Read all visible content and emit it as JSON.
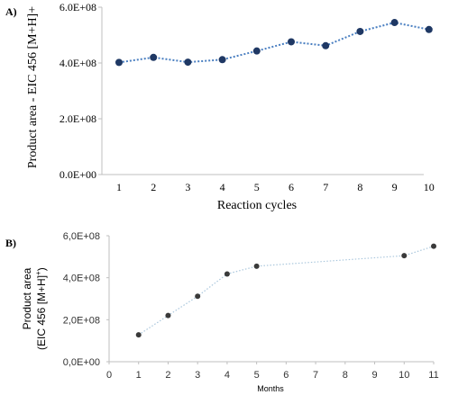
{
  "panels": [
    {
      "label": "A)"
    },
    {
      "label": "B)"
    }
  ],
  "chart_data": [
    {
      "type": "line",
      "title": "",
      "xlabel": "Reaction cycles",
      "ylabel": "Product area - EIC 456 [M+H]+",
      "x": [
        1,
        2,
        3,
        4,
        5,
        6,
        7,
        8,
        9,
        10
      ],
      "x_ticks": [
        "1",
        "2",
        "3",
        "4",
        "5",
        "6",
        "7",
        "8",
        "9",
        "10"
      ],
      "ylim": [
        0,
        600000000
      ],
      "y_ticks": [
        0,
        200000000,
        400000000,
        600000000
      ],
      "y_tick_labels": [
        "0.0E+00",
        "2.0E+08",
        "4.0E+08",
        "6.0E+08"
      ],
      "series": [
        {
          "values": [
            402000000,
            420000000,
            403000000,
            412000000,
            443000000,
            476000000,
            462000000,
            513000000,
            545000000,
            520000000
          ],
          "color": "#1f3864",
          "line_color": "#4a7fc1",
          "line_style": "dotted"
        }
      ],
      "grid": false,
      "legend": "none"
    },
    {
      "type": "scatter",
      "title": "",
      "xlabel": "Months",
      "ylabel": "Product area (EIC 456 [M+H]+)",
      "ylabel_lines": [
        "Product area",
        "(EIC 456 [M+H]",
        "+",
        ")"
      ],
      "x": [
        1,
        2,
        3,
        4,
        5,
        10,
        11
      ],
      "xlim": [
        0,
        11
      ],
      "x_ticks": [
        "0",
        "1",
        "2",
        "3",
        "4",
        "5",
        "6",
        "7",
        "8",
        "9",
        "10",
        "11"
      ],
      "ylim": [
        0,
        600000000
      ],
      "y_ticks": [
        0,
        200000000,
        400000000,
        600000000
      ],
      "y_tick_labels": [
        "0,0E+00",
        "2,0E+08",
        "4,0E+08",
        "6,0E+08"
      ],
      "series": [
        {
          "values": [
            128000000,
            220000000,
            312000000,
            418000000,
            455000000,
            505000000,
            550000000
          ],
          "color": "#3a3a3a",
          "line_color": "#a9c6dc",
          "line_style": "dotted"
        }
      ],
      "grid": false,
      "legend": "none"
    }
  ]
}
